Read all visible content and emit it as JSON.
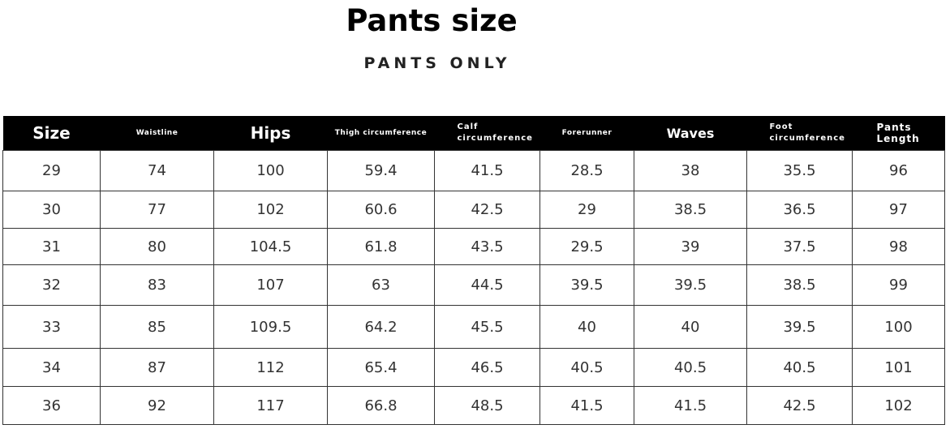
{
  "title": "Pants size",
  "subtitle": "PANTS ONLY",
  "table": {
    "headers": [
      "Size",
      "Waistline",
      "Hips",
      "Thigh circumference",
      "Calf circumference",
      "Forerunner",
      "Waves",
      "Foot circumference",
      "Pants Length"
    ],
    "rows": [
      [
        "29",
        "74",
        "100",
        "59.4",
        "41.5",
        "28.5",
        "38",
        "35.5",
        "96"
      ],
      [
        "30",
        "77",
        "102",
        "60.6",
        "42.5",
        "29",
        "38.5",
        "36.5",
        "97"
      ],
      [
        "31",
        "80",
        "104.5",
        "61.8",
        "43.5",
        "29.5",
        "39",
        "37.5",
        "98"
      ],
      [
        "32",
        "83",
        "107",
        "63",
        "44.5",
        "39.5",
        "39.5",
        "38.5",
        "99"
      ],
      [
        "33",
        "85",
        "109.5",
        "64.2",
        "45.5",
        "40",
        "40",
        "39.5",
        "100"
      ],
      [
        "34",
        "87",
        "112",
        "65.4",
        "46.5",
        "40.5",
        "40.5",
        "40.5",
        "101"
      ],
      [
        "36",
        "92",
        "117",
        "66.8",
        "48.5",
        "41.5",
        "41.5",
        "42.5",
        "102"
      ]
    ]
  }
}
